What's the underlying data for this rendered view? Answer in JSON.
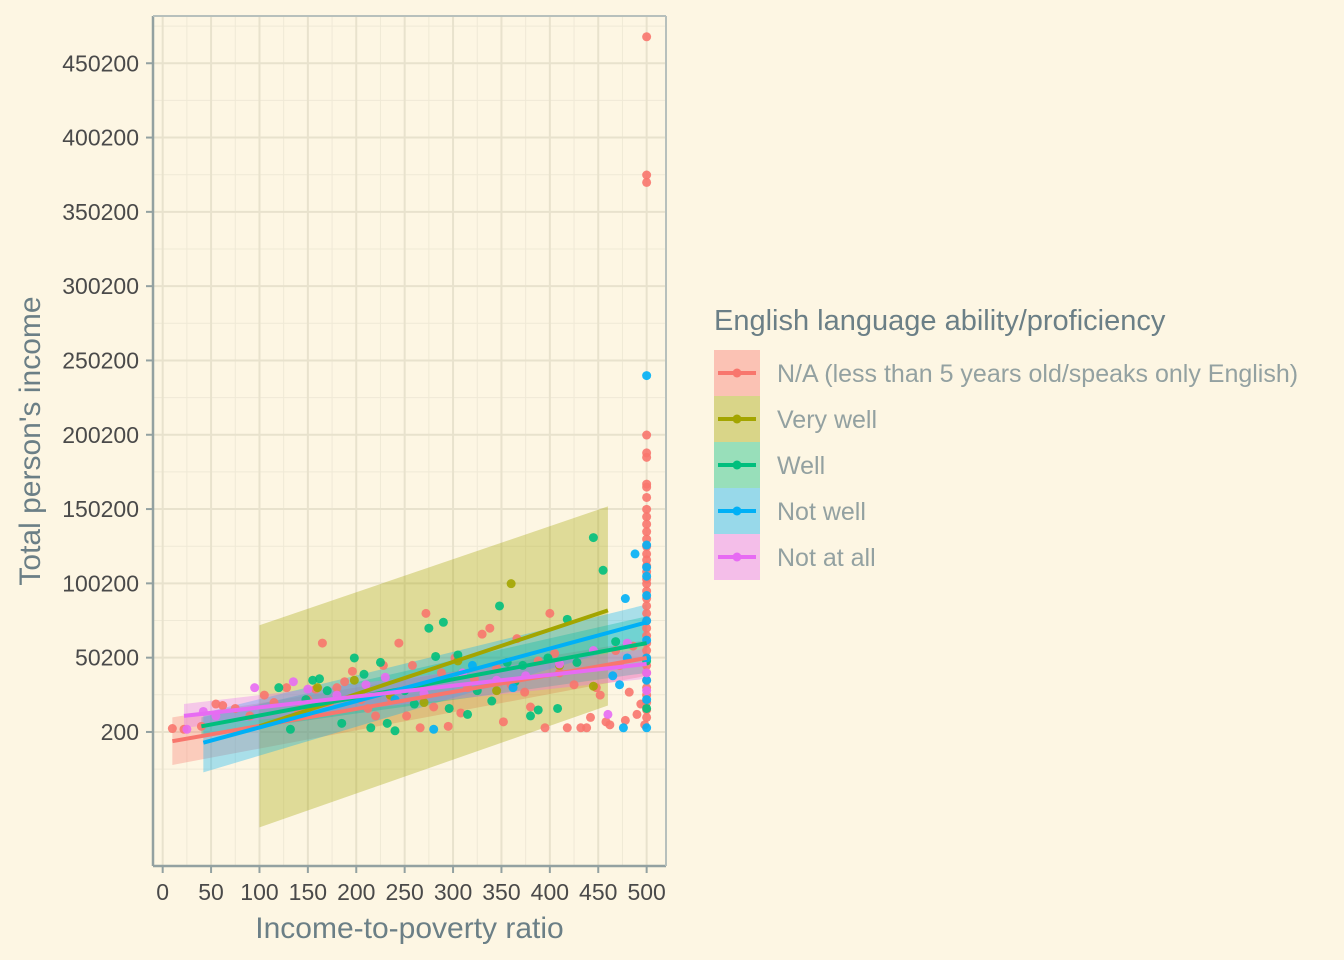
{
  "chart_data": {
    "type": "scatter",
    "title": "",
    "xlabel": "Income-to-poverty ratio",
    "ylabel": "Total person's income",
    "xlim": [
      -10,
      520
    ],
    "ylim": [
      -90000,
      482000
    ],
    "x_ticks": [
      0,
      50,
      100,
      150,
      200,
      250,
      300,
      350,
      400,
      450,
      500
    ],
    "x_tick_labels": [
      "0",
      "50",
      "100",
      "150",
      "200",
      "250",
      "300",
      "350",
      "400",
      "450",
      "500"
    ],
    "y_ticks": [
      200,
      50200,
      100200,
      150200,
      200200,
      250200,
      300200,
      350200,
      400200,
      450200
    ],
    "y_tick_labels": [
      "200",
      "50200",
      "100200",
      "150200",
      "200200",
      "250200",
      "300200",
      "350200",
      "400200",
      "450200"
    ],
    "grid": true,
    "legend_position": "right",
    "legend_title": "English language ability/proficiency",
    "series": [
      {
        "name": "N/A (less than 5 years old/speaks only English)",
        "color": "#f8766d",
        "fit": {
          "x": [
            10,
            500
          ],
          "y": [
            -6000,
            50000
          ],
          "ci_low": [
            -22000,
            38000
          ],
          "ci_high": [
            10000,
            62000
          ]
        },
        "points": [
          [
            10,
            2500
          ],
          [
            22,
            2000
          ],
          [
            40,
            4000
          ],
          [
            55,
            19000
          ],
          [
            62,
            18000
          ],
          [
            75,
            16000
          ],
          [
            90,
            11000
          ],
          [
            105,
            25000
          ],
          [
            115,
            20000
          ],
          [
            128,
            30000
          ],
          [
            140,
            15000
          ],
          [
            150,
            22000
          ],
          [
            158,
            29000
          ],
          [
            165,
            60000
          ],
          [
            172,
            19000
          ],
          [
            180,
            30000
          ],
          [
            188,
            34000
          ],
          [
            196,
            41000
          ],
          [
            205,
            22000
          ],
          [
            212,
            16000
          ],
          [
            220,
            11000
          ],
          [
            228,
            45000
          ],
          [
            236,
            23000
          ],
          [
            244,
            60000
          ],
          [
            252,
            11000
          ],
          [
            258,
            45000
          ],
          [
            266,
            3000
          ],
          [
            272,
            80000
          ],
          [
            280,
            17000
          ],
          [
            288,
            40000
          ],
          [
            295,
            4000
          ],
          [
            302,
            50000
          ],
          [
            308,
            13000
          ],
          [
            315,
            30000
          ],
          [
            322,
            36000
          ],
          [
            330,
            66000
          ],
          [
            338,
            70000
          ],
          [
            345,
            43000
          ],
          [
            352,
            7000
          ],
          [
            360,
            32000
          ],
          [
            366,
            63000
          ],
          [
            374,
            27000
          ],
          [
            380,
            17000
          ],
          [
            388,
            48000
          ],
          [
            395,
            3000
          ],
          [
            400,
            80000
          ],
          [
            405,
            53000
          ],
          [
            410,
            40000
          ],
          [
            418,
            3000
          ],
          [
            425,
            32000
          ],
          [
            432,
            3000
          ],
          [
            438,
            3000
          ],
          [
            442,
            10000
          ],
          [
            448,
            30000
          ],
          [
            452,
            25000
          ],
          [
            458,
            7000
          ],
          [
            462,
            5000
          ],
          [
            468,
            55000
          ],
          [
            472,
            45000
          ],
          [
            478,
            8000
          ],
          [
            482,
            27000
          ],
          [
            486,
            58000
          ],
          [
            490,
            12000
          ],
          [
            494,
            19000
          ],
          [
            498,
            5000
          ],
          [
            500,
            468000
          ],
          [
            500,
            375000
          ],
          [
            500,
            370000
          ],
          [
            500,
            200000
          ],
          [
            500,
            188000
          ],
          [
            500,
            185000
          ],
          [
            500,
            167000
          ],
          [
            500,
            165000
          ],
          [
            500,
            158000
          ],
          [
            500,
            150000
          ],
          [
            500,
            145000
          ],
          [
            500,
            140000
          ],
          [
            500,
            135000
          ],
          [
            500,
            130000
          ],
          [
            500,
            125000
          ],
          [
            500,
            120000
          ],
          [
            500,
            116000
          ],
          [
            500,
            112000
          ],
          [
            500,
            108000
          ],
          [
            500,
            103000
          ],
          [
            500,
            100000
          ],
          [
            500,
            95000
          ],
          [
            500,
            90000
          ],
          [
            500,
            85000
          ],
          [
            500,
            80000
          ],
          [
            500,
            75000
          ],
          [
            500,
            70000
          ],
          [
            500,
            65000
          ],
          [
            500,
            60000
          ],
          [
            500,
            55000
          ],
          [
            500,
            50000
          ],
          [
            500,
            45000
          ],
          [
            500,
            40000
          ],
          [
            500,
            35000
          ],
          [
            500,
            30000
          ],
          [
            500,
            25000
          ],
          [
            500,
            20000
          ],
          [
            500,
            15000
          ],
          [
            500,
            10000
          ]
        ]
      },
      {
        "name": "Very well",
        "color": "#a3a500",
        "fit": {
          "x": [
            100,
            460
          ],
          "y": [
            4000,
            82000
          ],
          "ci_low": [
            -64000,
            18000
          ],
          "ci_high": [
            72000,
            152000
          ]
        },
        "points": [
          [
            198,
            35000
          ],
          [
            235,
            25000
          ],
          [
            305,
            48000
          ],
          [
            360,
            100000
          ],
          [
            410,
            45000
          ],
          [
            345,
            28000
          ],
          [
            270,
            20000
          ],
          [
            160,
            30000
          ],
          [
            445,
            31000
          ]
        ]
      },
      {
        "name": "Well",
        "color": "#00bf7d",
        "fit": {
          "x": [
            40,
            500
          ],
          "y": [
            4000,
            60000
          ],
          "ci_low": [
            -2000,
            40000
          ],
          "ci_high": [
            10000,
            78000
          ]
        },
        "points": [
          [
            120,
            30000
          ],
          [
            132,
            2000
          ],
          [
            148,
            22000
          ],
          [
            155,
            35000
          ],
          [
            162,
            36000
          ],
          [
            170,
            28000
          ],
          [
            185,
            6000
          ],
          [
            198,
            50000
          ],
          [
            208,
            39000
          ],
          [
            215,
            3000
          ],
          [
            225,
            47000
          ],
          [
            232,
            6000
          ],
          [
            240,
            1000
          ],
          [
            250,
            28000
          ],
          [
            260,
            19000
          ],
          [
            275,
            70000
          ],
          [
            282,
            51000
          ],
          [
            290,
            74000
          ],
          [
            296,
            16000
          ],
          [
            305,
            52000
          ],
          [
            315,
            12000
          ],
          [
            325,
            28000
          ],
          [
            340,
            21000
          ],
          [
            348,
            85000
          ],
          [
            356,
            47000
          ],
          [
            364,
            34000
          ],
          [
            372,
            45000
          ],
          [
            380,
            11000
          ],
          [
            388,
            15000
          ],
          [
            398,
            50000
          ],
          [
            408,
            16000
          ],
          [
            418,
            76000
          ],
          [
            428,
            47000
          ],
          [
            445,
            131000
          ],
          [
            455,
            109000
          ],
          [
            468,
            61000
          ],
          [
            500,
            16000
          ],
          [
            500,
            48000
          ]
        ]
      },
      {
        "name": "Not well",
        "color": "#00b0f6",
        "fit": {
          "x": [
            42,
            500
          ],
          "y": [
            -7000,
            74000
          ],
          "ci_low": [
            -27000,
            62000
          ],
          "ci_high": [
            13000,
            86000
          ]
        },
        "points": [
          [
            280,
            2000
          ],
          [
            478,
            90000
          ],
          [
            488,
            120000
          ],
          [
            500,
            240000
          ],
          [
            500,
            126000
          ],
          [
            500,
            111000
          ],
          [
            500,
            105000
          ],
          [
            500,
            92000
          ],
          [
            500,
            75000
          ],
          [
            500,
            62000
          ],
          [
            500,
            50000
          ],
          [
            500,
            35000
          ],
          [
            500,
            22000
          ],
          [
            500,
            3000
          ],
          [
            476,
            3000
          ],
          [
            472,
            32000
          ],
          [
            465,
            38000
          ],
          [
            480,
            50000
          ],
          [
            362,
            30000
          ],
          [
            320,
            45000
          ],
          [
            240,
            22000
          ]
        ]
      },
      {
        "name": "Not at all",
        "color": "#e76bf3",
        "fit": {
          "x": [
            22,
            500
          ],
          "y": [
            11000,
            46000
          ],
          "ci_low": [
            3000,
            36000
          ],
          "ci_high": [
            19000,
            56000
          ]
        },
        "points": [
          [
            25,
            2000
          ],
          [
            42,
            14000
          ],
          [
            55,
            11000
          ],
          [
            95,
            30000
          ],
          [
            135,
            34000
          ],
          [
            150,
            29000
          ],
          [
            180,
            25000
          ],
          [
            210,
            32000
          ],
          [
            230,
            37000
          ],
          [
            270,
            26000
          ],
          [
            310,
            40000
          ],
          [
            345,
            35000
          ],
          [
            375,
            38000
          ],
          [
            410,
            46000
          ],
          [
            445,
            55000
          ],
          [
            460,
            12000
          ],
          [
            480,
            60000
          ],
          [
            500,
            40000
          ],
          [
            500,
            28000
          ]
        ]
      }
    ]
  }
}
